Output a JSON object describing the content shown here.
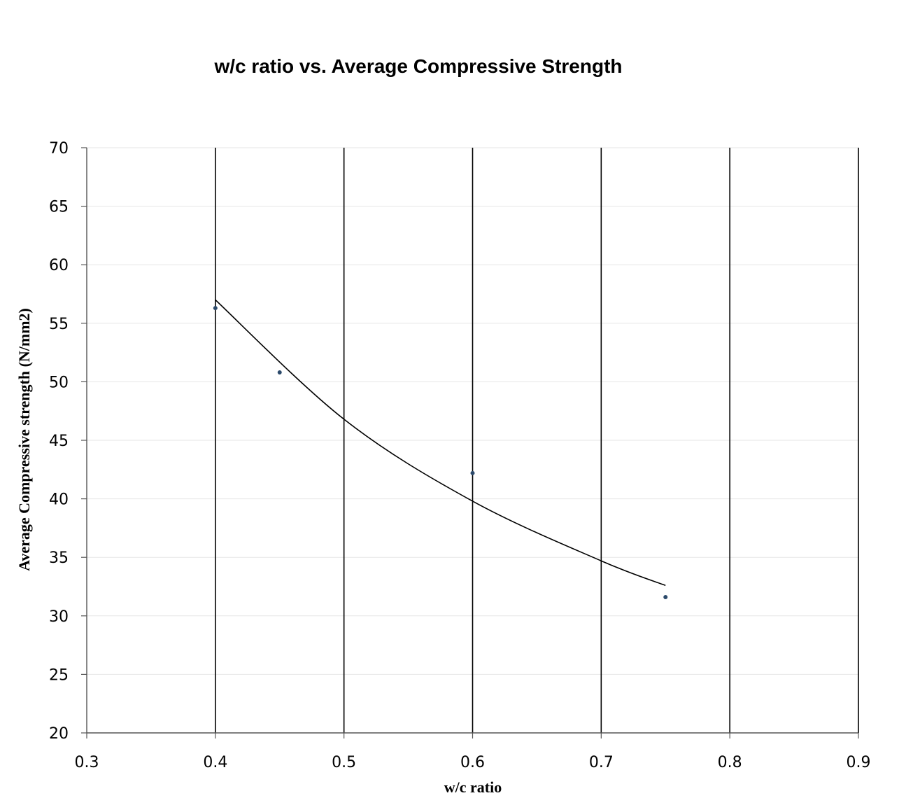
{
  "chart_data": {
    "type": "scatter",
    "title": "w/c ratio vs. Average Compressive Strength",
    "xlabel": "w/c  ratio",
    "ylabel": "Average  Compressive  strength (N/mm2)",
    "xlim": [
      0.3,
      0.9
    ],
    "ylim": [
      20,
      70
    ],
    "xticks": [
      "0.3",
      "0.4",
      "0.5",
      "0.6",
      "0.7",
      "0.8",
      "0.9"
    ],
    "yticks": [
      "20",
      "25",
      "30",
      "35",
      "40",
      "45",
      "50",
      "55",
      "60",
      "65",
      "70"
    ],
    "points": [
      {
        "x": 0.4,
        "y": 56.3
      },
      {
        "x": 0.45,
        "y": 50.8
      },
      {
        "x": 0.6,
        "y": 42.2
      },
      {
        "x": 0.75,
        "y": 31.6
      }
    ],
    "trendline": {
      "type": "exponential",
      "x_range": [
        0.4,
        0.75
      ],
      "values": [
        {
          "x": 0.4,
          "y": 57.0
        },
        {
          "x": 0.5,
          "y": 46.8
        },
        {
          "x": 0.6,
          "y": 39.8
        },
        {
          "x": 0.7,
          "y": 34.7
        },
        {
          "x": 0.75,
          "y": 32.6
        }
      ]
    },
    "grid": {
      "major_x": true,
      "major_y": true
    },
    "legend": "none",
    "colors": {
      "points": "#2c4a6b",
      "trendline": "#000000",
      "vertical_grid": "#000000",
      "horizontal_grid": "#e6e6e6"
    }
  }
}
